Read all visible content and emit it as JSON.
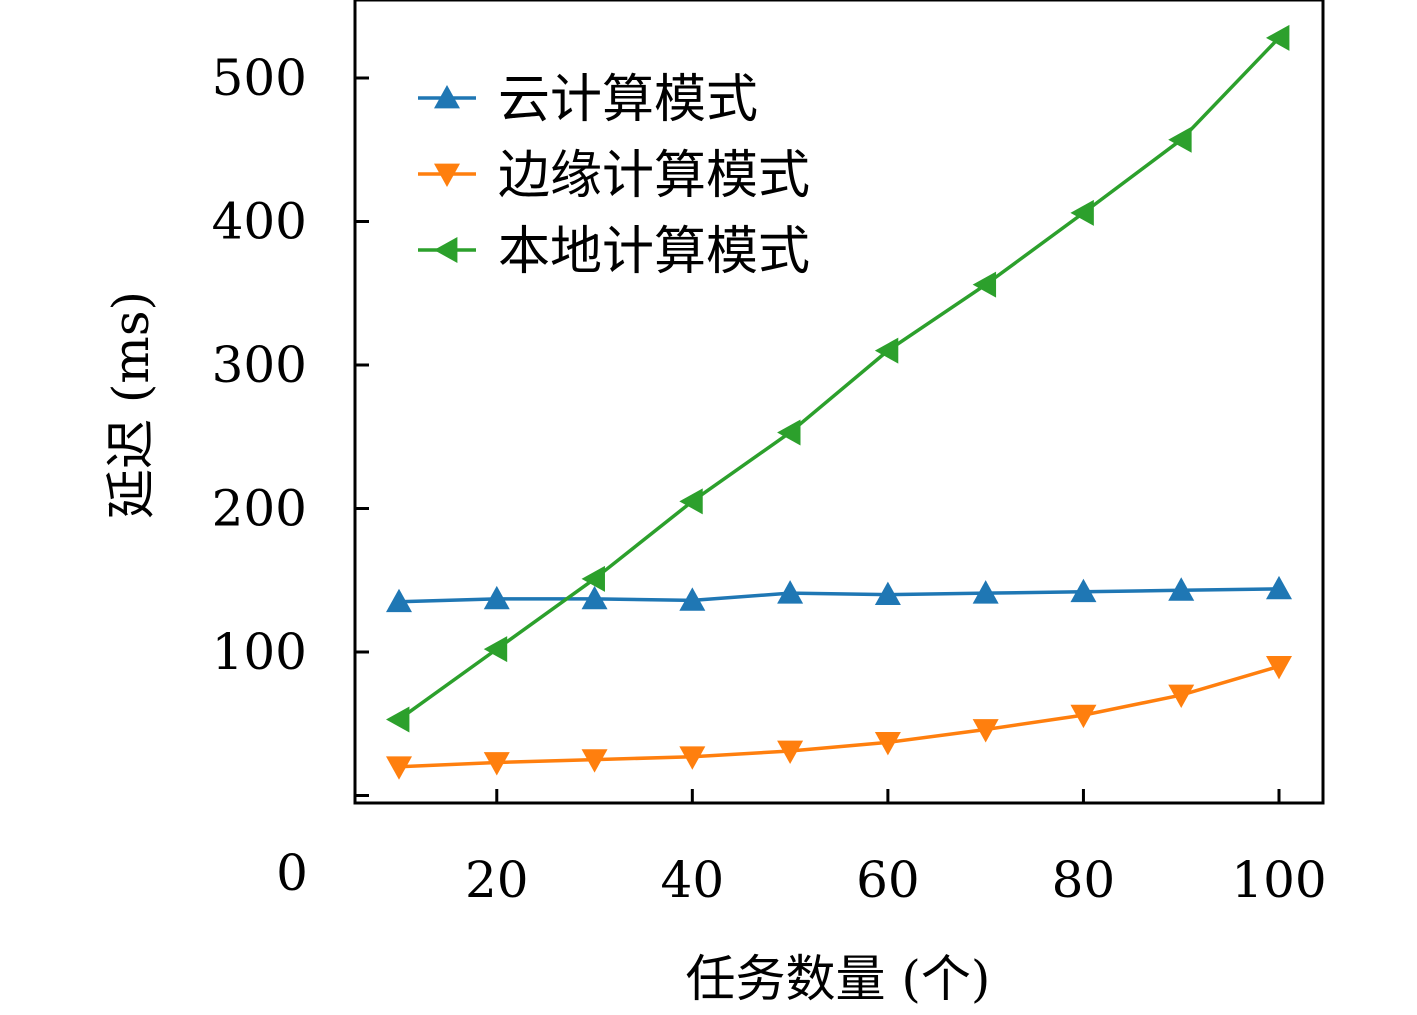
{
  "chart_data": {
    "type": "line",
    "xlabel": "任务数量 (个)",
    "ylabel": "延迟 (ms)",
    "xlim": [
      5.5,
      104.5
    ],
    "ylim": [
      0,
      540
    ],
    "xticks": [
      20,
      40,
      60,
      80,
      100
    ],
    "yticks": [
      100,
      200,
      300,
      400,
      500
    ],
    "x_origin_label": "0",
    "legend_position": "upper-left",
    "grid": false,
    "x": [
      10,
      20,
      30,
      40,
      50,
      60,
      70,
      80,
      90,
      100
    ],
    "series": [
      {
        "name": "云计算模式",
        "color": "#1f77b4",
        "marker": "triangle-up",
        "values": [
          135,
          137,
          137,
          136,
          141,
          140,
          141,
          142,
          143,
          144
        ]
      },
      {
        "name": "边缘计算模式",
        "color": "#ff7f0e",
        "marker": "triangle-down",
        "values": [
          20,
          23,
          25,
          27,
          31,
          37,
          46,
          56,
          70,
          90
        ]
      },
      {
        "name": "本地计算模式",
        "color": "#2ca02c",
        "marker": "triangle-left",
        "values": [
          53,
          102,
          151,
          205,
          253,
          310,
          356,
          406,
          457,
          528
        ]
      }
    ]
  }
}
